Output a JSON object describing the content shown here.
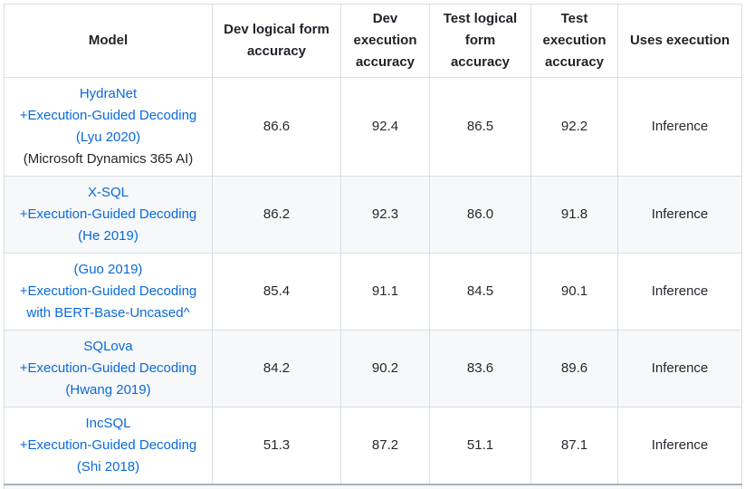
{
  "colors": {
    "link_blue": "#0969da",
    "alt_row_bg": "#f6f8fa",
    "border": "#d8dee4",
    "text": "#24292f"
  },
  "table": {
    "columns": [
      {
        "label": "Model"
      },
      {
        "label": "Dev logical form accuracy"
      },
      {
        "label": "Dev execution accuracy"
      },
      {
        "label": "Test logical form accuracy"
      },
      {
        "label": "Test execution accuracy"
      },
      {
        "label": "Uses execution"
      }
    ],
    "rows": [
      {
        "model_lines": [
          {
            "text": "HydraNet",
            "link": true
          },
          {
            "text": "+Execution-Guided Decoding",
            "link": true
          },
          {
            "text": "(Lyu 2020)",
            "link": true
          },
          {
            "text": "(Microsoft Dynamics 365 AI)",
            "link": false
          }
        ],
        "values": [
          "86.6",
          "92.4",
          "86.5",
          "92.2",
          "Inference"
        ]
      },
      {
        "model_lines": [
          {
            "text": "X-SQL",
            "link": true
          },
          {
            "text": "+Execution-Guided Decoding",
            "link": true
          },
          {
            "text": "(He 2019)",
            "link": true
          }
        ],
        "values": [
          "86.2",
          "92.3",
          "86.0",
          "91.8",
          "Inference"
        ]
      },
      {
        "model_lines": [
          {
            "text": "(Guo 2019)",
            "link": true
          },
          {
            "text": "+Execution-Guided Decoding",
            "link": true
          },
          {
            "text": "with BERT-Base-Uncased^",
            "link": true
          }
        ],
        "values": [
          "85.4",
          "91.1",
          "84.5",
          "90.1",
          "Inference"
        ]
      },
      {
        "model_lines": [
          {
            "text": "SQLova",
            "link": true
          },
          {
            "text": "+Execution-Guided Decoding",
            "link": true
          },
          {
            "text": "(Hwang 2019)",
            "link": true
          }
        ],
        "values": [
          "84.2",
          "90.2",
          "83.6",
          "89.6",
          "Inference"
        ]
      },
      {
        "model_lines": [
          {
            "text": "IncSQL",
            "link": true
          },
          {
            "text": "+Execution-Guided Decoding",
            "link": true
          },
          {
            "text": "(Shi 2018)",
            "link": true
          }
        ],
        "values": [
          "51.3",
          "87.2",
          "51.1",
          "87.1",
          "Inference"
        ]
      }
    ]
  }
}
